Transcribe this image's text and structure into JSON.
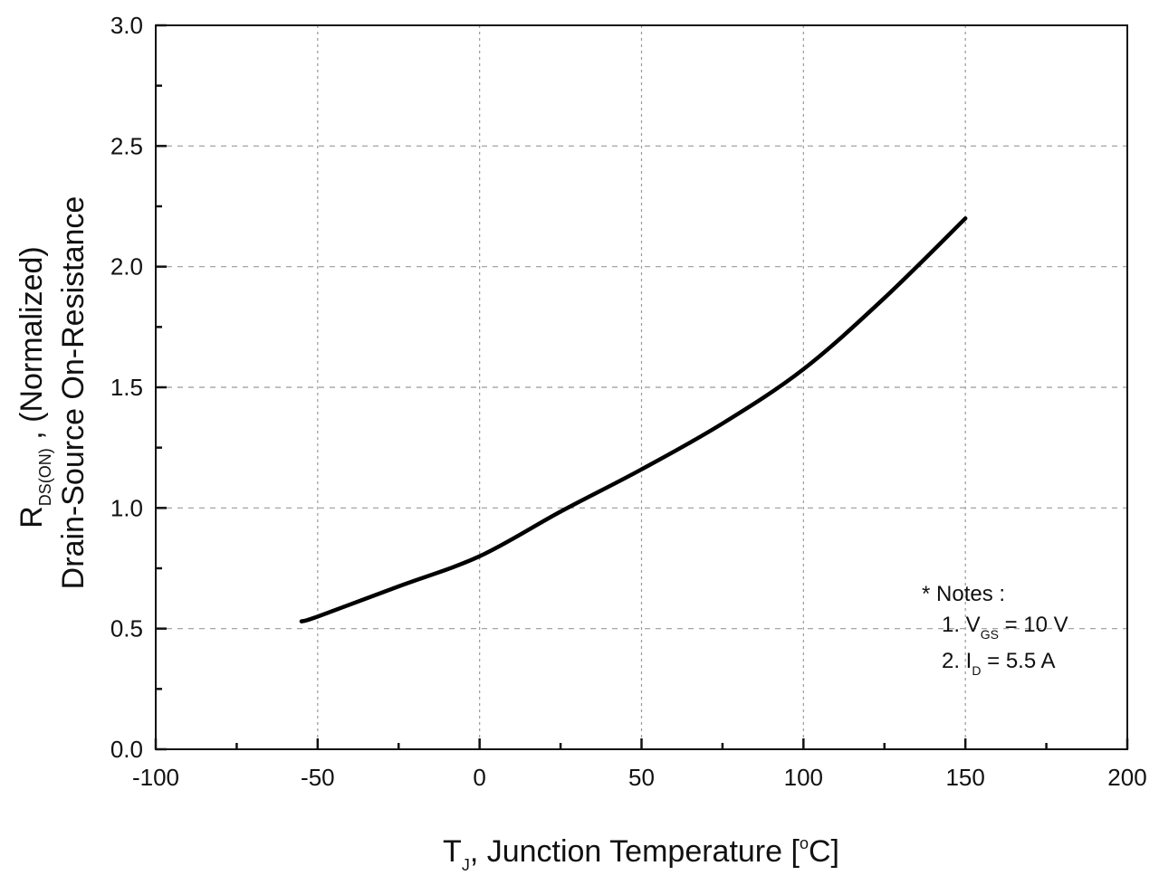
{
  "chart_data": {
    "type": "line",
    "title": "",
    "xlabel": {
      "main": "T",
      "sub": "J",
      "rest": ", Junction Temperature [",
      "sup": "o",
      "unit": "C]"
    },
    "ylabel": {
      "line1_main": "R",
      "line1_sub": "DS(ON)",
      "line1_rest": " , (Normalized)",
      "line2": "Drain-Source On-Resistance"
    },
    "xlim": [
      -100,
      200
    ],
    "ylim": [
      0.0,
      3.0
    ],
    "xticks": [
      "-100",
      "-50",
      "0",
      "50",
      "100",
      "150",
      "200"
    ],
    "xtick_values": [
      -100,
      -50,
      0,
      50,
      100,
      150,
      200
    ],
    "yticks": [
      "0.0",
      "0.5",
      "1.0",
      "1.5",
      "2.0",
      "2.5",
      "3.0"
    ],
    "ytick_values": [
      0,
      0.5,
      1.0,
      1.5,
      2.0,
      2.5,
      3.0
    ],
    "grid": true,
    "series": [
      {
        "name": "RDS(ON)",
        "color": "#000000",
        "x": [
          -55,
          -50,
          -25,
          0,
          25,
          50,
          75,
          100,
          125,
          150
        ],
        "y": [
          0.53,
          0.55,
          0.675,
          0.8,
          0.985,
          1.16,
          1.35,
          1.575,
          1.87,
          2.2
        ]
      }
    ],
    "notes": {
      "title": "* Notes :",
      "n1_pre": "1. V",
      "n1_sub": "GS",
      "n1_post": " = 10 V",
      "n2_pre": "2. I",
      "n2_sub": "D",
      "n2_post": " = 5.5 A"
    }
  }
}
